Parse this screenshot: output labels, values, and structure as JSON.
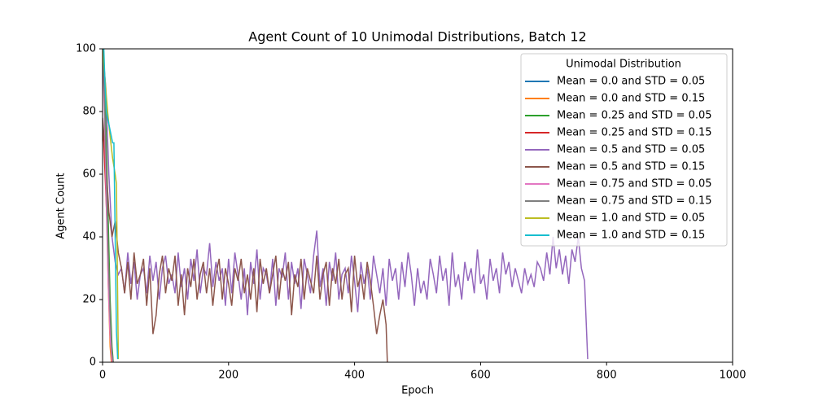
{
  "chart_data": {
    "type": "line",
    "title": "Agent Count of 10 Unimodal Distributions, Batch 12",
    "x_label": "Epoch",
    "y_label": "Agent Count",
    "xlim": [
      0,
      1000
    ],
    "ylim": [
      0,
      100
    ],
    "xticks": [
      0,
      200,
      400,
      600,
      800,
      1000
    ],
    "yticks": [
      0,
      20,
      40,
      60,
      80,
      100
    ],
    "legend_title": "Unimodal Distribution",
    "legend_position": "upper right",
    "series": [
      {
        "name": "Mean = 0.0 and STD = 0.05",
        "color": "#1f77b4",
        "x": [
          0,
          3,
          6,
          9,
          12,
          15
        ],
        "values": [
          100,
          90,
          60,
          30,
          8,
          0
        ]
      },
      {
        "name": "Mean = 0.0 and STD = 0.15",
        "color": "#ff7f0e",
        "x": [
          0,
          3,
          6,
          9,
          12,
          14
        ],
        "values": [
          100,
          85,
          55,
          25,
          5,
          0
        ]
      },
      {
        "name": "Mean = 0.25 and STD = 0.05",
        "color": "#2ca02c",
        "x": [
          0,
          3,
          6,
          9,
          12,
          15,
          17
        ],
        "values": [
          100,
          92,
          70,
          45,
          20,
          5,
          0
        ]
      },
      {
        "name": "Mean = 0.25 and STD = 0.15",
        "color": "#d62728",
        "x": [
          0,
          2,
          4,
          6,
          8,
          10,
          12,
          14,
          16
        ],
        "values": [
          75,
          70,
          60,
          50,
          40,
          28,
          15,
          5,
          0
        ]
      },
      {
        "name": "Mean = 0.5 and STD = 0.05",
        "color": "#9467bd",
        "x": [
          0,
          5,
          10,
          15,
          20,
          25,
          30,
          35,
          40,
          45,
          50,
          55,
          60,
          65,
          70,
          75,
          80,
          85,
          90,
          95,
          100,
          105,
          110,
          115,
          120,
          125,
          130,
          135,
          140,
          145,
          150,
          155,
          160,
          165,
          170,
          175,
          180,
          185,
          190,
          195,
          200,
          205,
          210,
          215,
          220,
          225,
          230,
          235,
          240,
          245,
          250,
          255,
          260,
          265,
          270,
          275,
          280,
          285,
          290,
          295,
          300,
          305,
          310,
          315,
          320,
          325,
          330,
          335,
          340,
          345,
          350,
          355,
          360,
          365,
          370,
          375,
          380,
          385,
          390,
          395,
          400,
          405,
          410,
          415,
          420,
          425,
          430,
          435,
          440,
          445,
          450,
          455,
          460,
          465,
          470,
          475,
          480,
          485,
          490,
          495,
          500,
          505,
          510,
          515,
          520,
          525,
          530,
          535,
          540,
          545,
          550,
          555,
          560,
          565,
          570,
          575,
          580,
          585,
          590,
          595,
          600,
          605,
          610,
          615,
          620,
          625,
          630,
          635,
          640,
          645,
          650,
          655,
          660,
          665,
          670,
          675,
          680,
          685,
          690,
          695,
          700,
          705,
          710,
          715,
          720,
          725,
          730,
          735,
          740,
          745,
          750,
          755,
          760,
          765,
          770
        ],
        "values": [
          100,
          88,
          60,
          40,
          32,
          28,
          30,
          22,
          35,
          25,
          32,
          20,
          28,
          30,
          22,
          34,
          26,
          32,
          20,
          30,
          34,
          25,
          28,
          22,
          35,
          24,
          30,
          20,
          33,
          26,
          36,
          22,
          30,
          28,
          38,
          24,
          32,
          26,
          30,
          18,
          33,
          22,
          35,
          28,
          20,
          30,
          15,
          32,
          25,
          36,
          20,
          30,
          28,
          22,
          33,
          18,
          30,
          27,
          35,
          20,
          32,
          25,
          30,
          17,
          33,
          28,
          22,
          34,
          42,
          24,
          30,
          18,
          32,
          26,
          35,
          20,
          28,
          30,
          22,
          34,
          26,
          16,
          32,
          25,
          30,
          20,
          34,
          28,
          22,
          30,
          18,
          33,
          26,
          30,
          20,
          32,
          24,
          35,
          28,
          18,
          30,
          22,
          26,
          20,
          33,
          28,
          22,
          34,
          26,
          30,
          18,
          35,
          24,
          28,
          20,
          32,
          26,
          30,
          22,
          36,
          25,
          28,
          20,
          33,
          26,
          30,
          22,
          35,
          28,
          32,
          24,
          30,
          26,
          22,
          30,
          25,
          28,
          24,
          32,
          30,
          26,
          35,
          28,
          40,
          30,
          36,
          28,
          34,
          25,
          36,
          32,
          40,
          30,
          26,
          1
        ]
      },
      {
        "name": "Mean = 0.5 and STD = 0.15",
        "color": "#8c564b",
        "x": [
          0,
          5,
          10,
          15,
          20,
          25,
          30,
          35,
          40,
          45,
          50,
          55,
          60,
          65,
          70,
          75,
          80,
          85,
          90,
          95,
          100,
          105,
          110,
          115,
          120,
          125,
          130,
          135,
          140,
          145,
          150,
          155,
          160,
          165,
          170,
          175,
          180,
          185,
          190,
          195,
          200,
          205,
          210,
          215,
          220,
          225,
          230,
          235,
          240,
          245,
          250,
          255,
          260,
          265,
          270,
          275,
          280,
          285,
          290,
          295,
          300,
          305,
          310,
          315,
          320,
          325,
          330,
          335,
          340,
          345,
          350,
          355,
          360,
          365,
          370,
          375,
          380,
          385,
          390,
          395,
          400,
          405,
          410,
          415,
          420,
          425,
          430,
          435,
          440,
          445,
          450,
          452
        ],
        "values": [
          78,
          65,
          48,
          40,
          45,
          35,
          30,
          22,
          32,
          20,
          35,
          25,
          28,
          33,
          18,
          30,
          9,
          15,
          28,
          34,
          22,
          30,
          26,
          34,
          18,
          28,
          15,
          30,
          24,
          33,
          20,
          28,
          32,
          22,
          30,
          18,
          28,
          33,
          20,
          30,
          25,
          18,
          30,
          26,
          33,
          22,
          28,
          20,
          30,
          16,
          33,
          25,
          30,
          22,
          28,
          34,
          20,
          30,
          26,
          32,
          15,
          28,
          24,
          33,
          20,
          30,
          26,
          22,
          34,
          20,
          28,
          32,
          18,
          30,
          25,
          33,
          20,
          28,
          30,
          16,
          34,
          24,
          28,
          20,
          32,
          26,
          18,
          9,
          15,
          20,
          12,
          0
        ]
      },
      {
        "name": "Mean = 0.75 and STD = 0.05",
        "color": "#e377c2",
        "x": [
          0,
          3,
          6,
          9,
          12,
          15
        ],
        "values": [
          100,
          80,
          50,
          25,
          8,
          0
        ]
      },
      {
        "name": "Mean = 0.75 and STD = 0.15",
        "color": "#7f7f7f",
        "x": [
          0,
          3,
          6,
          9,
          12,
          15,
          17
        ],
        "values": [
          100,
          85,
          60,
          35,
          15,
          3,
          0
        ]
      },
      {
        "name": "Mean = 1.0 and STD = 0.05",
        "color": "#bcbd22",
        "x": [
          0,
          4,
          8,
          12,
          16,
          20,
          22,
          24,
          25
        ],
        "values": [
          100,
          90,
          80,
          72,
          65,
          60,
          57,
          20,
          1
        ]
      },
      {
        "name": "Mean = 1.0 and STD = 0.15",
        "color": "#17becf",
        "x": [
          0,
          2,
          4,
          6,
          8,
          10,
          12,
          14,
          16,
          18,
          20,
          22,
          24
        ],
        "values": [
          100,
          100,
          88,
          80,
          78,
          76,
          74,
          72,
          70,
          70,
          40,
          10,
          1
        ]
      }
    ]
  }
}
